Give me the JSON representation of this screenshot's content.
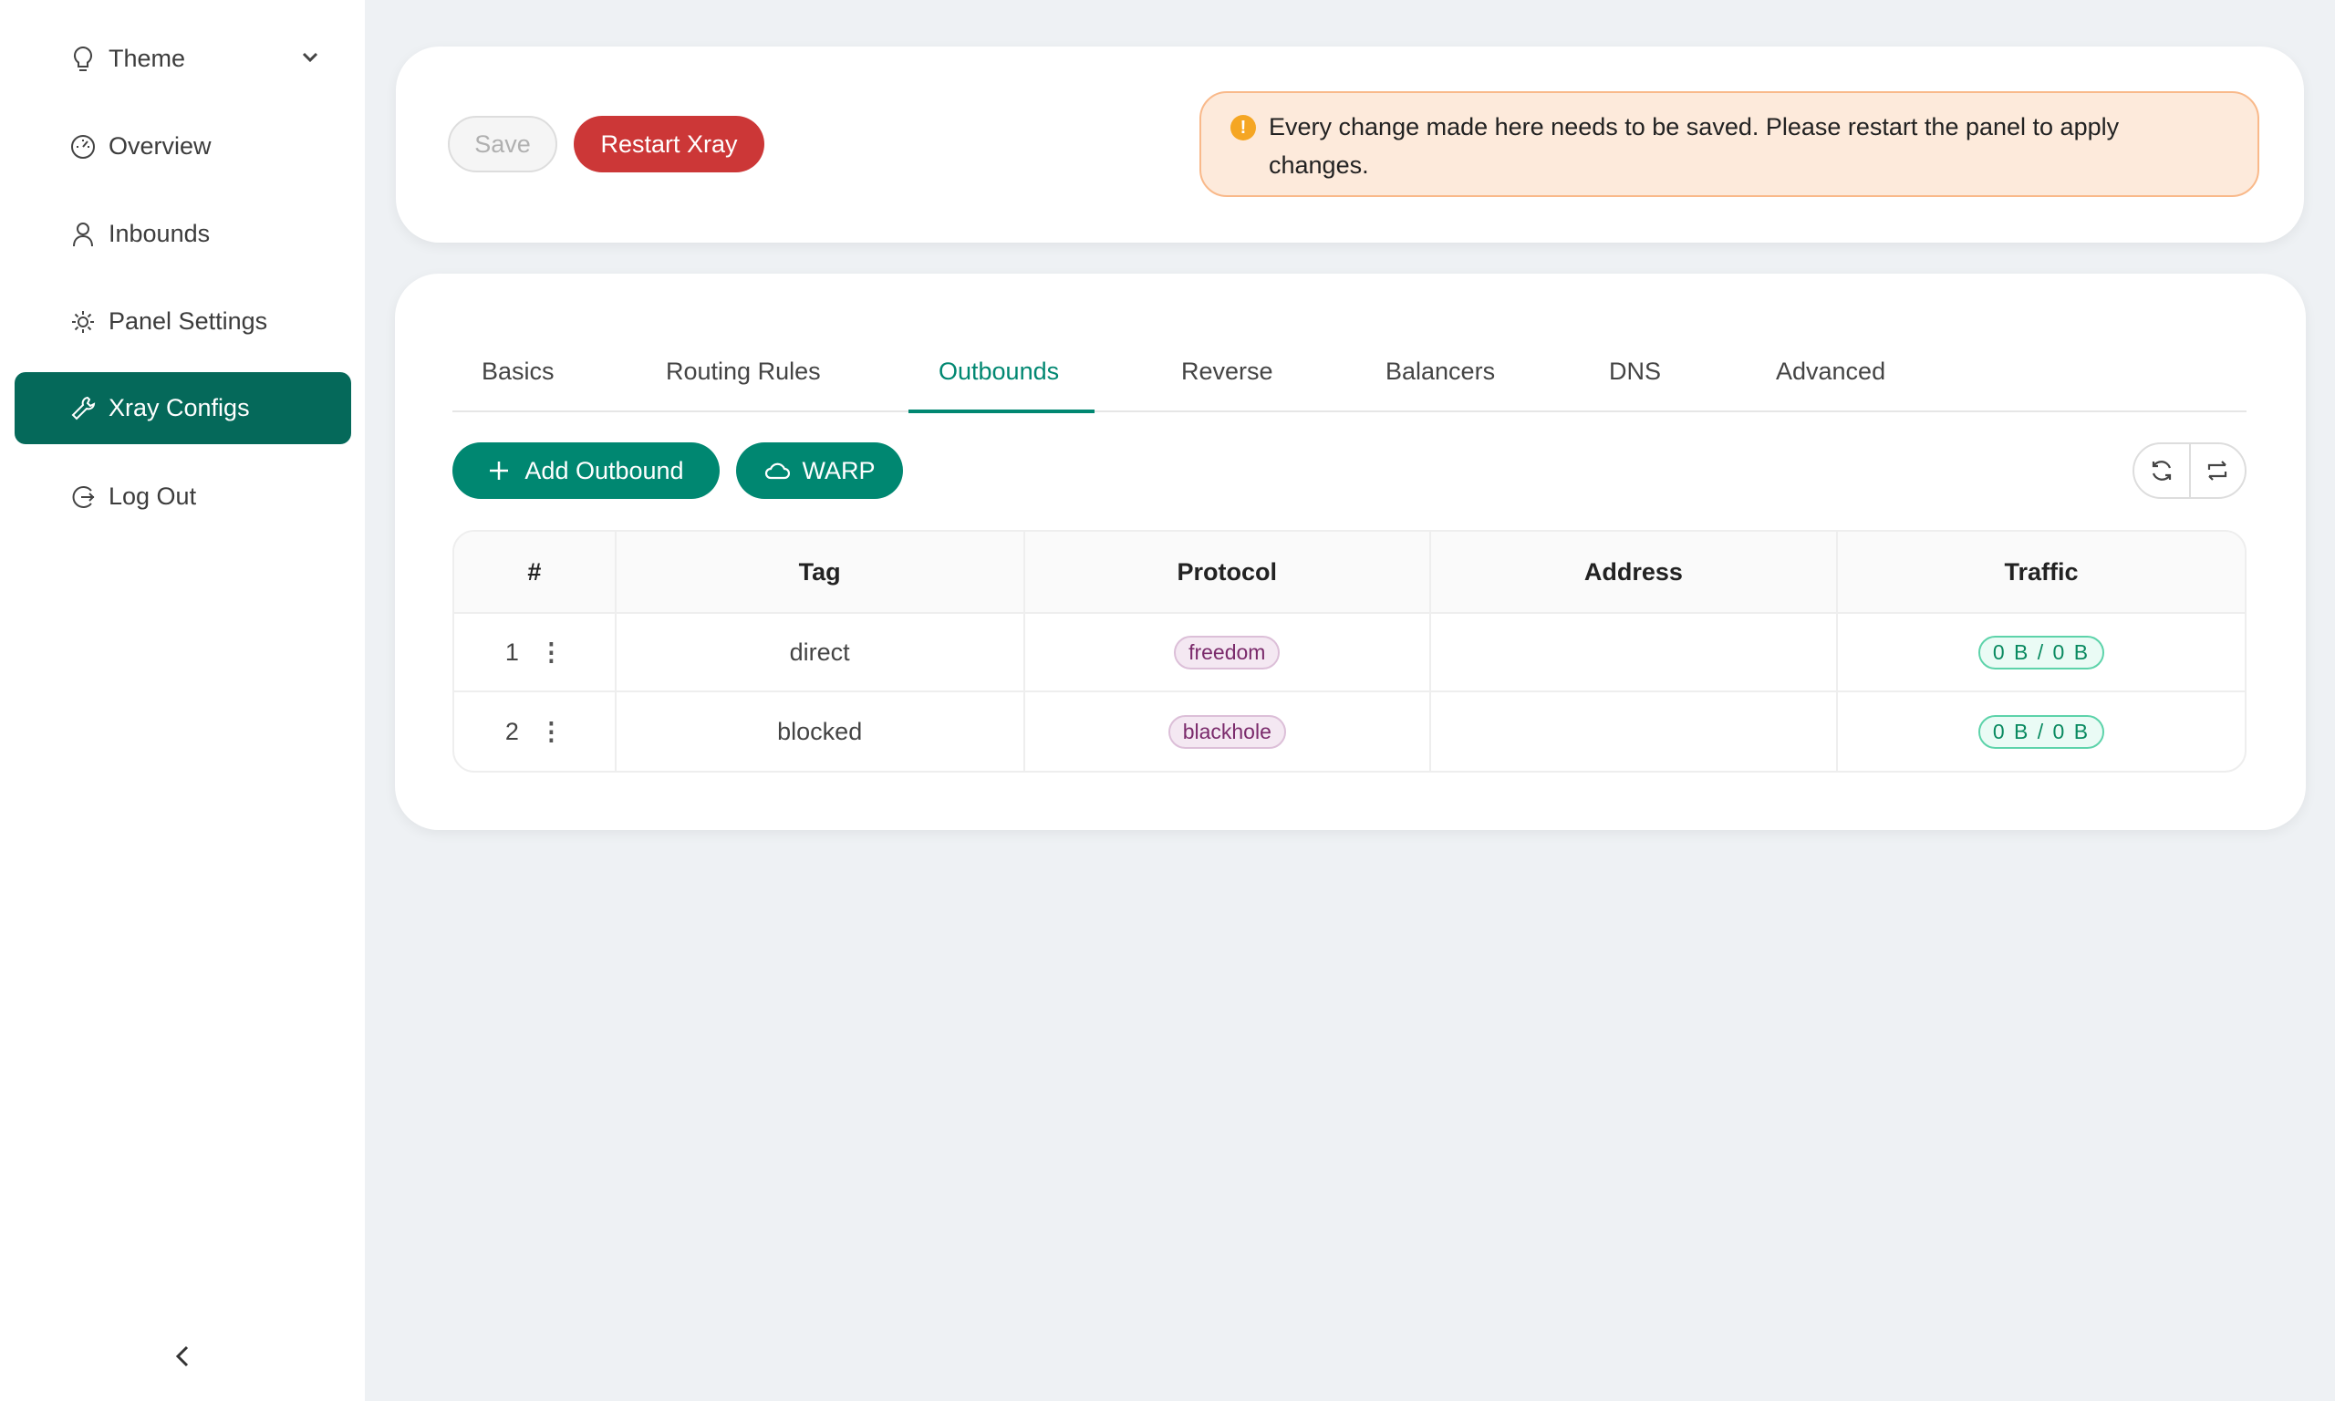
{
  "sidebar": {
    "items": [
      {
        "label": "Theme",
        "icon": "bulb-icon"
      },
      {
        "label": "Overview",
        "icon": "dashboard-icon"
      },
      {
        "label": "Inbounds",
        "icon": "user-icon"
      },
      {
        "label": "Panel Settings",
        "icon": "gear-icon"
      },
      {
        "label": "Xray Configs",
        "icon": "wrench-icon",
        "active": true
      },
      {
        "label": "Log Out",
        "icon": "logout-icon"
      }
    ]
  },
  "toolbar": {
    "save_label": "Save",
    "restart_label": "Restart Xray"
  },
  "alert": {
    "text": "Every change made here needs to be saved. Please restart the panel to apply changes."
  },
  "tabs": [
    "Basics",
    "Routing Rules",
    "Outbounds",
    "Reverse",
    "Balancers",
    "DNS",
    "Advanced"
  ],
  "active_tab": "Outbounds",
  "actions": {
    "add_label": "Add Outbound",
    "warp_label": "WARP"
  },
  "table": {
    "headers": [
      "#",
      "Tag",
      "Protocol",
      "Address",
      "Traffic"
    ],
    "rows": [
      {
        "index": "1",
        "tag": "direct",
        "protocol": "freedom",
        "address": "",
        "traffic": "0 B / 0 B"
      },
      {
        "index": "2",
        "tag": "blocked",
        "protocol": "blackhole",
        "address": "",
        "traffic": "0 B / 0 B"
      }
    ]
  },
  "colors": {
    "accent": "#008771",
    "sidebar_active": "#05695a",
    "danger": "#cc3737",
    "warning_bg": "#fdeadb"
  }
}
